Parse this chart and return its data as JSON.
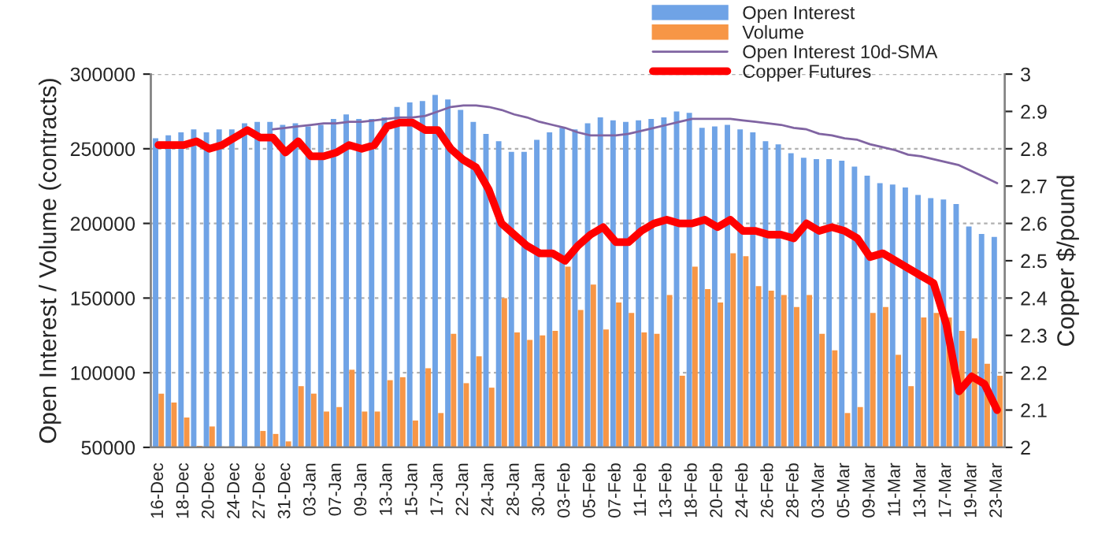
{
  "chart_data": {
    "type": "bar",
    "categories": [
      "16-Dec",
      null,
      "18-Dec",
      null,
      "20-Dec",
      null,
      "24-Dec",
      null,
      "27-Dec",
      null,
      "31-Dec",
      null,
      "03-Jan",
      null,
      "07-Jan",
      null,
      "09-Jan",
      null,
      "13-Jan",
      null,
      "15-Jan",
      null,
      "17-Jan",
      null,
      "22-Jan",
      null,
      "24-Jan",
      null,
      "28-Jan",
      null,
      "30-Jan",
      null,
      "03-Feb",
      null,
      "05-Feb",
      null,
      "07-Feb",
      null,
      "11-Feb",
      null,
      "13-Feb",
      null,
      "18-Feb",
      null,
      "20-Feb",
      null,
      "24-Feb",
      null,
      "26-Feb",
      null,
      "28-Feb",
      null,
      "03-Mar",
      null,
      "05-Mar",
      null,
      "09-Mar",
      null,
      "11-Mar",
      null,
      "13-Mar",
      null,
      "17-Mar",
      null,
      "19-Mar",
      null,
      "23-Mar"
    ],
    "series": [
      {
        "name": "Open Interest",
        "color": "#6fa3e6",
        "values": [
          257000,
          259000,
          261000,
          263000,
          261000,
          263000,
          263000,
          267000,
          268000,
          268000,
          266000,
          267000,
          265000,
          266000,
          270000,
          273000,
          270000,
          270000,
          271000,
          278000,
          281000,
          282000,
          286000,
          283000,
          276000,
          268000,
          260000,
          255000,
          248000,
          248000,
          256000,
          261000,
          264000,
          263000,
          267000,
          271000,
          269000,
          268000,
          269000,
          270000,
          271000,
          275000,
          274000,
          264000,
          265000,
          266000,
          263000,
          261000,
          255000,
          253000,
          247000,
          244000,
          243000,
          243000,
          242000,
          238000,
          232000,
          227000,
          226000,
          224000,
          219000,
          217000,
          216000,
          213000,
          198000,
          193000,
          191000
        ]
      },
      {
        "name": "Volume",
        "color": "#f79646",
        "values": [
          86000,
          80000,
          70000,
          51000,
          64000,
          null,
          null,
          null,
          61000,
          59000,
          54000,
          91000,
          86000,
          74000,
          77000,
          102000,
          74000,
          74000,
          95000,
          97000,
          68000,
          103000,
          73000,
          126000,
          93000,
          111000,
          90000,
          150000,
          127000,
          122000,
          125000,
          128000,
          171000,
          142000,
          159000,
          129000,
          147000,
          140000,
          127000,
          126000,
          152000,
          98000,
          171000,
          156000,
          147000,
          180000,
          178000,
          158000,
          155000,
          152000,
          144000,
          152000,
          126000,
          115000,
          73000,
          77000,
          140000,
          144000,
          112000,
          91000,
          137000,
          140000,
          137000,
          128000,
          123000,
          106000,
          98000
        ]
      },
      {
        "name": "Open Interest 10d-SMA",
        "type": "line",
        "color": "#8064a2",
        "values": [
          null,
          null,
          null,
          null,
          null,
          null,
          null,
          null,
          null,
          263000,
          264000,
          265000,
          266000,
          267000,
          267000,
          268000,
          268000,
          269000,
          270000,
          271000,
          271000,
          272000,
          275000,
          278000,
          279000,
          279000,
          278000,
          276000,
          273000,
          271000,
          268000,
          266000,
          264000,
          261000,
          259000,
          259000,
          259000,
          260000,
          262000,
          264000,
          266000,
          268000,
          270000,
          270000,
          270000,
          270000,
          269000,
          268000,
          267000,
          266000,
          264000,
          263000,
          260000,
          259000,
          257000,
          256000,
          253000,
          251000,
          249000,
          246000,
          245000,
          243000,
          241000,
          239000,
          235000,
          231000,
          227000
        ]
      },
      {
        "name": "Copper Futures",
        "type": "line",
        "axis": "y2",
        "color": "#ff0000",
        "values": [
          2.81,
          2.81,
          2.81,
          2.82,
          2.8,
          2.81,
          2.83,
          2.85,
          2.83,
          2.83,
          2.79,
          2.82,
          2.78,
          2.78,
          2.79,
          2.81,
          2.8,
          2.81,
          2.86,
          2.87,
          2.87,
          2.85,
          2.85,
          2.8,
          2.77,
          2.75,
          2.69,
          2.6,
          2.57,
          2.54,
          2.52,
          2.52,
          2.5,
          2.54,
          2.57,
          2.59,
          2.55,
          2.55,
          2.58,
          2.6,
          2.61,
          2.6,
          2.6,
          2.61,
          2.59,
          2.61,
          2.58,
          2.58,
          2.57,
          2.57,
          2.56,
          2.6,
          2.58,
          2.59,
          2.58,
          2.56,
          2.51,
          2.52,
          2.5,
          2.48,
          2.46,
          2.44,
          2.33,
          2.15,
          2.19,
          2.17,
          2.1
        ]
      }
    ],
    "ylabel": "Open Interest / Volume (contracts)",
    "y2label": "Copper $/pound",
    "ylim": [
      50000,
      300000
    ],
    "yticks": [
      50000,
      100000,
      150000,
      200000,
      250000,
      300000
    ],
    "y2lim": [
      2,
      3
    ],
    "y2ticks": [
      2,
      2.1,
      2.2,
      2.3,
      2.4,
      2.5,
      2.6,
      2.7,
      2.8,
      2.9,
      3
    ],
    "grid": "y",
    "legend": "top right"
  }
}
